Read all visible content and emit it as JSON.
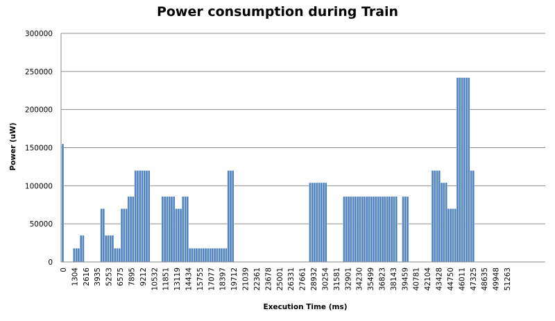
{
  "chart_data": {
    "type": "bar",
    "title": "Power consumption during Train",
    "xlabel": "Execution Time (ms)",
    "ylabel": "Power (uW)",
    "ylim": [
      0,
      300000
    ],
    "yticks": [
      0,
      50000,
      100000,
      150000,
      200000,
      250000,
      300000
    ],
    "grid": "horizontal",
    "legend": "none",
    "xtick_labels": [
      "0",
      "1304",
      "2616",
      "3935",
      "5253",
      "6575",
      "7895",
      "9212",
      "10532",
      "11851",
      "13119",
      "14434",
      "15755",
      "17077",
      "18397",
      "19712",
      "21039",
      "22361",
      "23678",
      "25001",
      "26331",
      "27661",
      "28932",
      "30254",
      "31581",
      "32901",
      "34230",
      "35499",
      "36823",
      "38143",
      "39459",
      "40781",
      "42104",
      "43428",
      "44750",
      "46011",
      "47325",
      "48635",
      "49948",
      "51263"
    ],
    "bar_color": "#4f81bd",
    "values": [
      155000,
      0,
      0,
      0,
      0,
      18000,
      18000,
      18000,
      35000,
      35000,
      0,
      0,
      0,
      0,
      0,
      0,
      0,
      70000,
      70000,
      35000,
      35000,
      35000,
      35000,
      18000,
      18000,
      18000,
      70000,
      70000,
      70000,
      86000,
      86000,
      86000,
      120000,
      120000,
      120000,
      120000,
      120000,
      120000,
      120000,
      0,
      0,
      0,
      0,
      0,
      86000,
      86000,
      86000,
      86000,
      86000,
      86000,
      70000,
      70000,
      70000,
      86000,
      86000,
      86000,
      18000,
      18000,
      18000,
      18000,
      18000,
      18000,
      18000,
      18000,
      18000,
      18000,
      18000,
      18000,
      18000,
      18000,
      18000,
      18000,
      18000,
      120000,
      120000,
      120000,
      0,
      0,
      0,
      0,
      0,
      0,
      0,
      0,
      0,
      0,
      0,
      0,
      0,
      0,
      0,
      0,
      0,
      0,
      0,
      0,
      0,
      0,
      0,
      0,
      0,
      0,
      0,
      0,
      0,
      0,
      0,
      0,
      0,
      104000,
      104000,
      104000,
      104000,
      104000,
      104000,
      104000,
      104000,
      0,
      0,
      0,
      0,
      0,
      0,
      0,
      86000,
      86000,
      86000,
      86000,
      86000,
      86000,
      86000,
      86000,
      86000,
      86000,
      86000,
      86000,
      86000,
      86000,
      86000,
      86000,
      86000,
      86000,
      86000,
      86000,
      86000,
      86000,
      86000,
      86000,
      0,
      0,
      86000,
      86000,
      86000,
      0,
      0,
      0,
      0,
      0,
      0,
      0,
      0,
      0,
      0,
      120000,
      120000,
      120000,
      120000,
      104000,
      104000,
      104000,
      70000,
      70000,
      70000,
      70000,
      242000,
      242000,
      242000,
      242000,
      242000,
      242000,
      120000,
      120000
    ]
  }
}
